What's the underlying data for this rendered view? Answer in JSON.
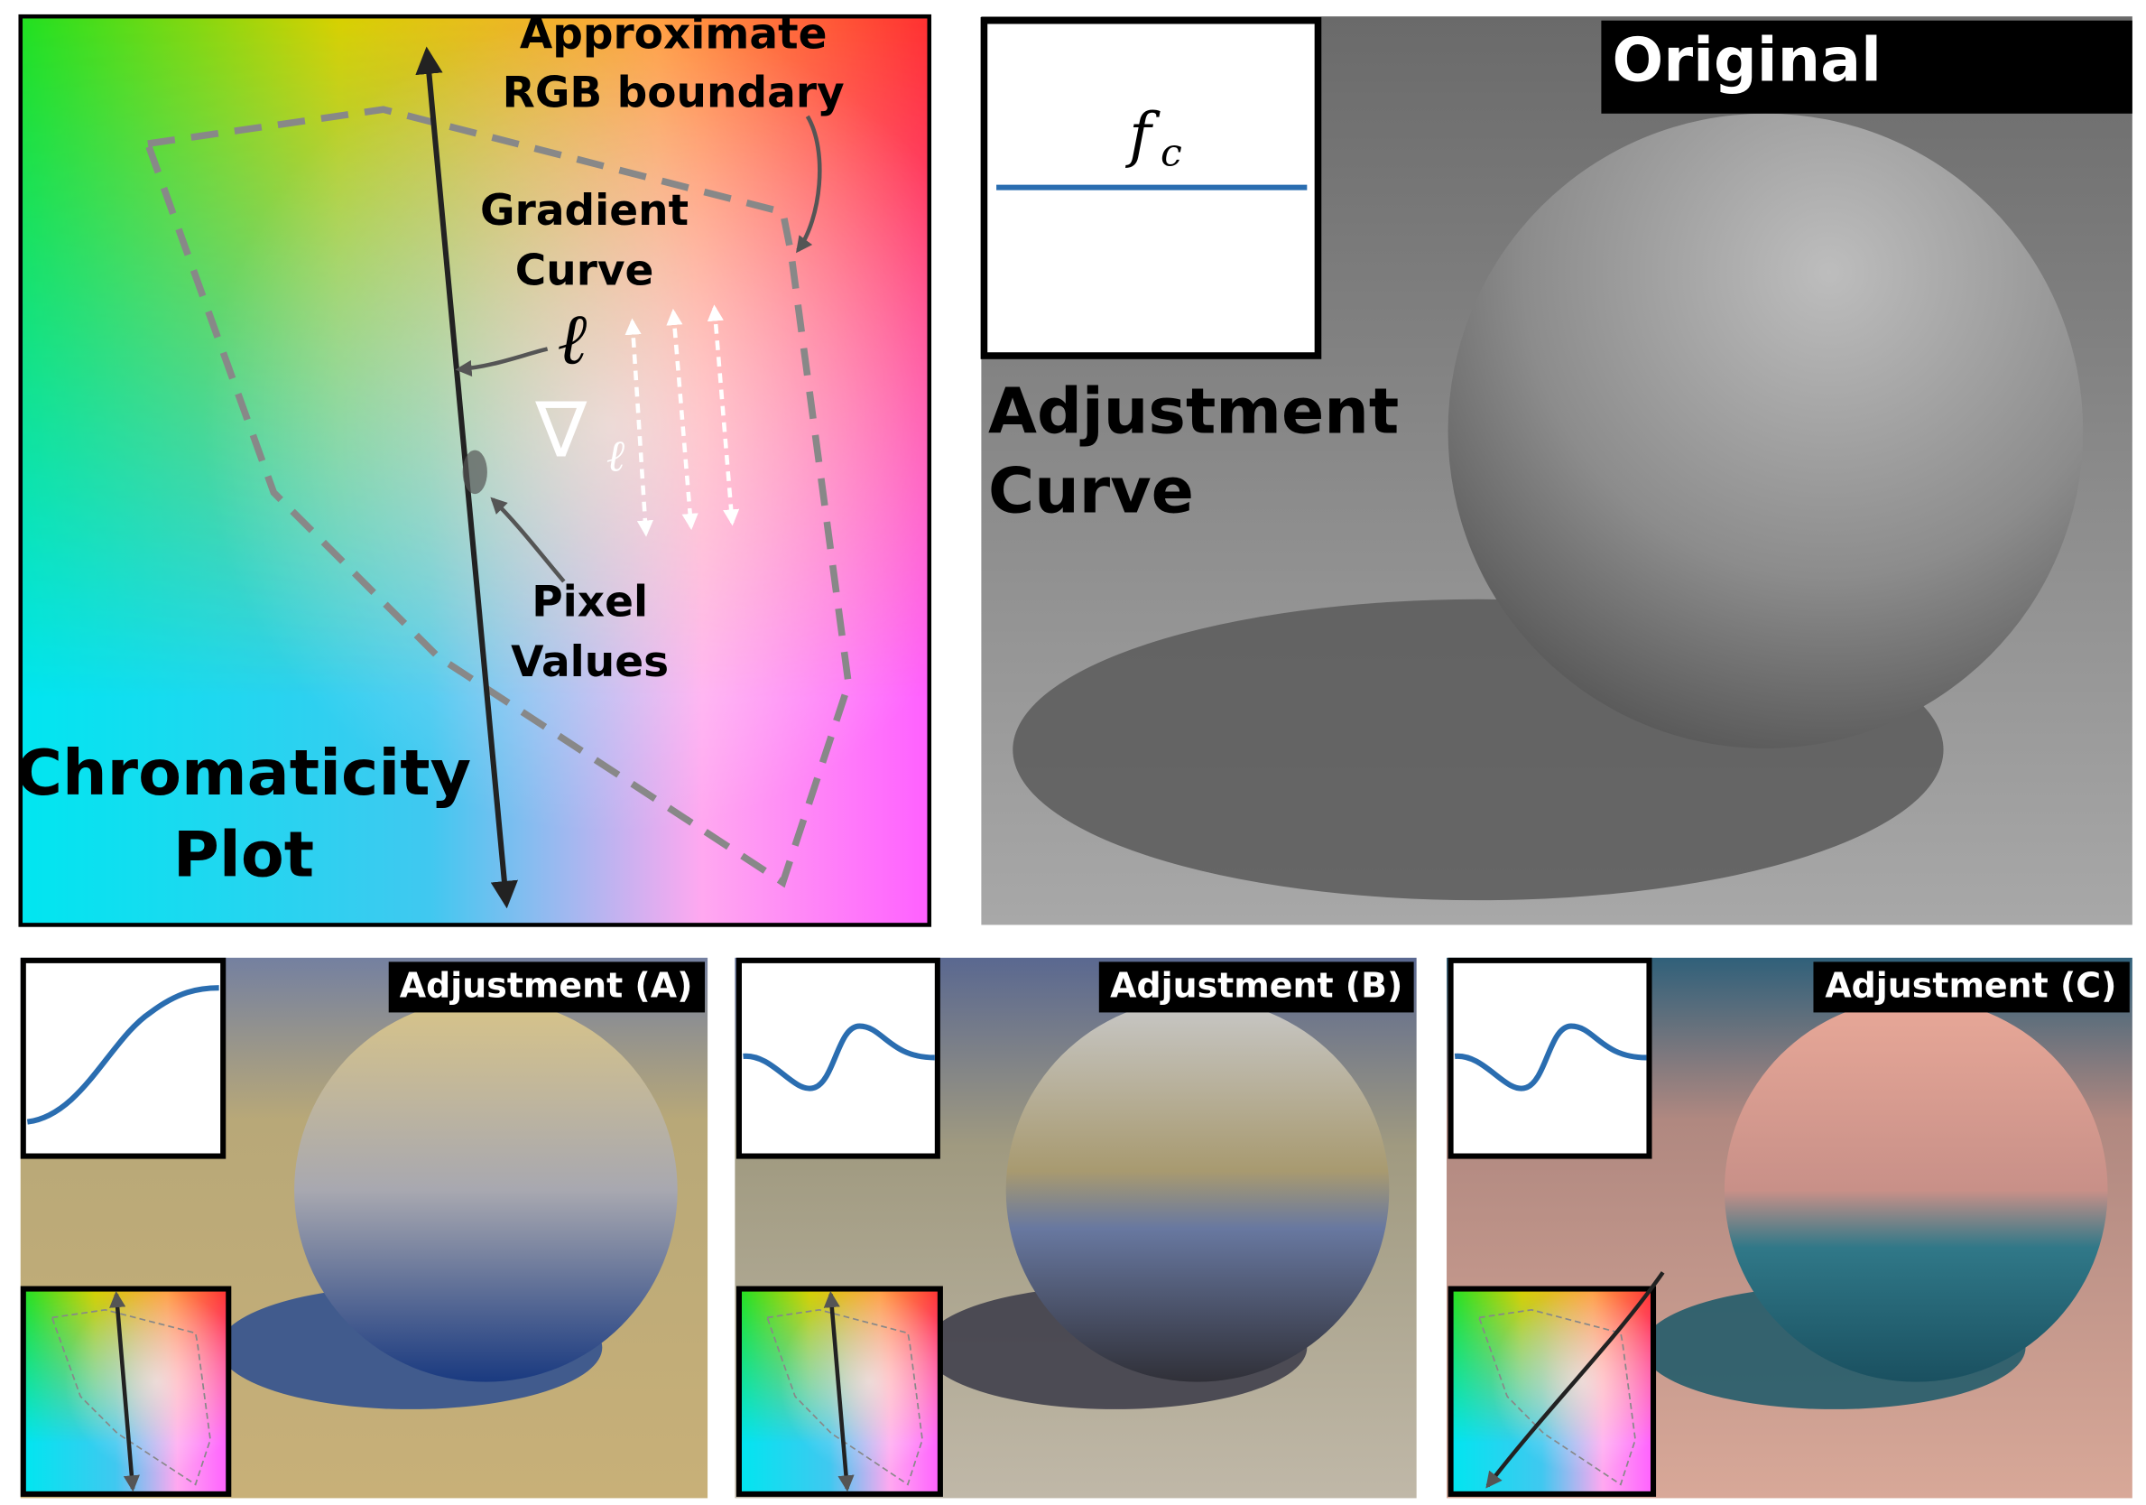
{
  "top_left": {
    "boundary_label": [
      "Approximate",
      "RGB boundary"
    ],
    "gradient_label": [
      "Gradient",
      "Curve"
    ],
    "curve_symbol": "ℓ",
    "gradient_symbol": "∇",
    "gradient_subscript": "ℓ",
    "pixel_label": [
      "Pixel",
      "Values"
    ],
    "plot_label": [
      "Chromaticity",
      "Plot"
    ]
  },
  "top_right": {
    "label": "Original",
    "function_symbol": "f",
    "function_subscript": "c",
    "curve_label": [
      "Adjustment",
      "Curve"
    ]
  },
  "panels": [
    {
      "label": "Adjustment (A)"
    },
    {
      "label": "Adjustment (B)"
    },
    {
      "label": "Adjustment (C)"
    }
  ]
}
